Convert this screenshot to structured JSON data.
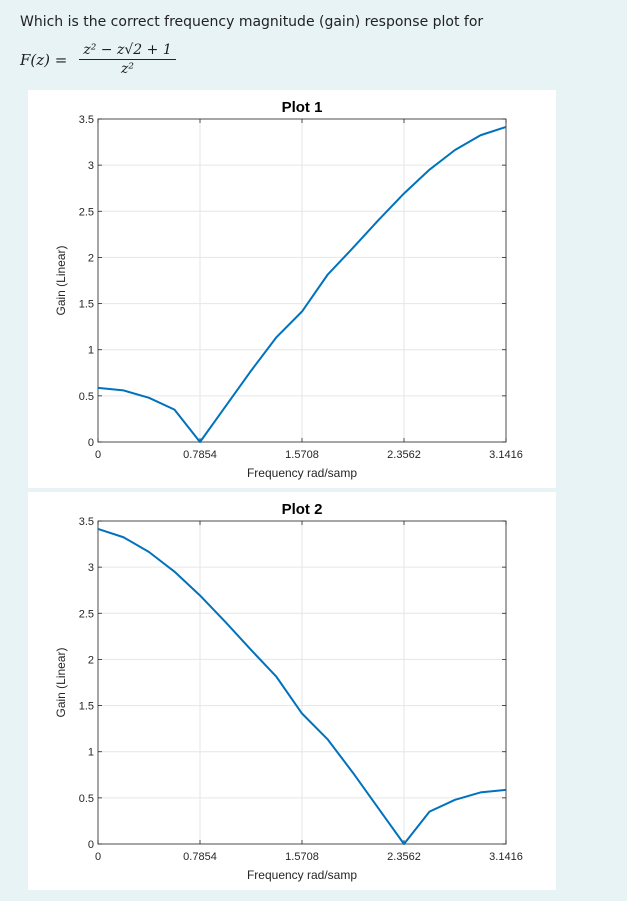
{
  "question": {
    "text": "Which is the correct frequency magnitude (gain) response plot for",
    "formula_lhs": "F(z) =",
    "formula_num": "z² − z√2 + 1",
    "formula_den": "z²"
  },
  "chart_data": [
    {
      "type": "line",
      "title": "Plot 1",
      "xlabel": "Frequency rad/samp",
      "ylabel": "Gain (Linear)",
      "xlim": [
        0,
        3.1416
      ],
      "ylim": [
        0,
        3.5
      ],
      "xticks": [
        0,
        0.7854,
        1.5708,
        2.3562,
        3.1416
      ],
      "xtick_labels": [
        "0",
        "0.7854",
        "1.5708",
        "2.3562",
        "3.1416"
      ],
      "yticks": [
        0,
        0.5,
        1,
        1.5,
        2,
        2.5,
        3,
        3.5
      ],
      "ytick_labels": [
        "0",
        "0.5",
        "1",
        "1.5",
        "2",
        "2.5",
        "3",
        "3.5"
      ],
      "grid": true,
      "line_color": "#0072bd",
      "series": [
        {
          "x": [
            0,
            0.1963,
            0.3927,
            0.589,
            0.7854,
            0.9817,
            1.1781,
            1.3744,
            1.5708,
            1.7671,
            1.9635,
            2.1598,
            2.3562,
            2.5525,
            2.7489,
            2.9452,
            3.1416
          ],
          "values": [
            0.586,
            0.559,
            0.479,
            0.351,
            0.0,
            0.385,
            0.771,
            1.136,
            1.414,
            1.811,
            2.104,
            2.405,
            2.693,
            2.951,
            3.164,
            3.324,
            3.414
          ]
        }
      ]
    },
    {
      "type": "line",
      "title": "Plot 2",
      "xlabel": "Frequency rad/samp",
      "ylabel": "Gain (Linear)",
      "xlim": [
        0,
        3.1416
      ],
      "ylim": [
        0,
        3.5
      ],
      "xticks": [
        0,
        0.7854,
        1.5708,
        2.3562,
        3.1416
      ],
      "xtick_labels": [
        "0",
        "0.7854",
        "1.5708",
        "2.3562",
        "3.1416"
      ],
      "yticks": [
        0,
        0.5,
        1,
        1.5,
        2,
        2.5,
        3,
        3.5
      ],
      "ytick_labels": [
        "0",
        "0.5",
        "1",
        "1.5",
        "2",
        "2.5",
        "3",
        "3.5"
      ],
      "grid": true,
      "line_color": "#0072bd",
      "series": [
        {
          "x": [
            0,
            0.1963,
            0.3927,
            0.589,
            0.7854,
            0.9817,
            1.1781,
            1.3744,
            1.5708,
            1.7671,
            1.9635,
            2.1598,
            2.3562,
            2.5525,
            2.7489,
            2.9452,
            3.1416
          ],
          "values": [
            3.414,
            3.324,
            3.164,
            2.951,
            2.693,
            2.405,
            2.104,
            1.811,
            1.414,
            1.136,
            0.771,
            0.385,
            0.0,
            0.351,
            0.479,
            0.559,
            0.586
          ]
        }
      ]
    }
  ]
}
